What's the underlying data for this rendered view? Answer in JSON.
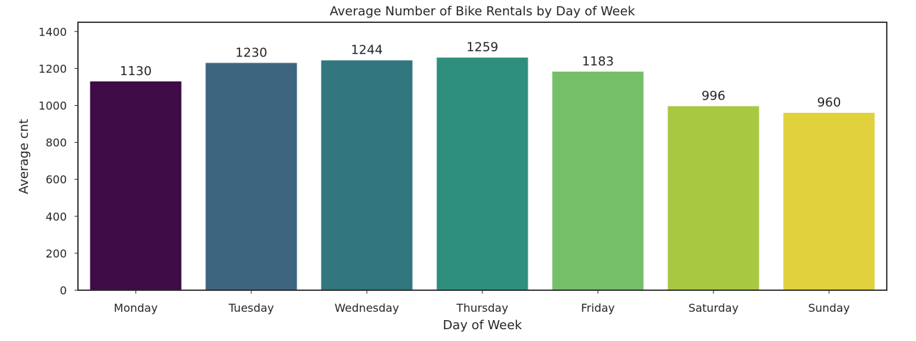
{
  "chart_data": {
    "type": "bar",
    "title": "Average Number of Bike Rentals by Day of Week",
    "xlabel": "Day of Week",
    "ylabel": "Average cnt",
    "categories": [
      "Monday",
      "Tuesday",
      "Wednesday",
      "Thursday",
      "Friday",
      "Saturday",
      "Sunday"
    ],
    "values": [
      1130,
      1230,
      1244,
      1259,
      1183,
      996,
      960
    ],
    "data_labels": [
      "1130",
      "1230",
      "1244",
      "1259",
      "1183",
      "996",
      "960"
    ],
    "colors": [
      "#3e0b46",
      "#3e6580",
      "#32777f",
      "#2f8f7d",
      "#76bf69",
      "#a8c842",
      "#e1d13d"
    ],
    "ylim": [
      0,
      1450
    ],
    "yticks": [
      0,
      200,
      400,
      600,
      800,
      1000,
      1200,
      1400
    ],
    "ytick_labels": [
      "0",
      "200",
      "400",
      "600",
      "800",
      "1000",
      "1200",
      "1400"
    ],
    "grid": false,
    "legend": "none"
  }
}
